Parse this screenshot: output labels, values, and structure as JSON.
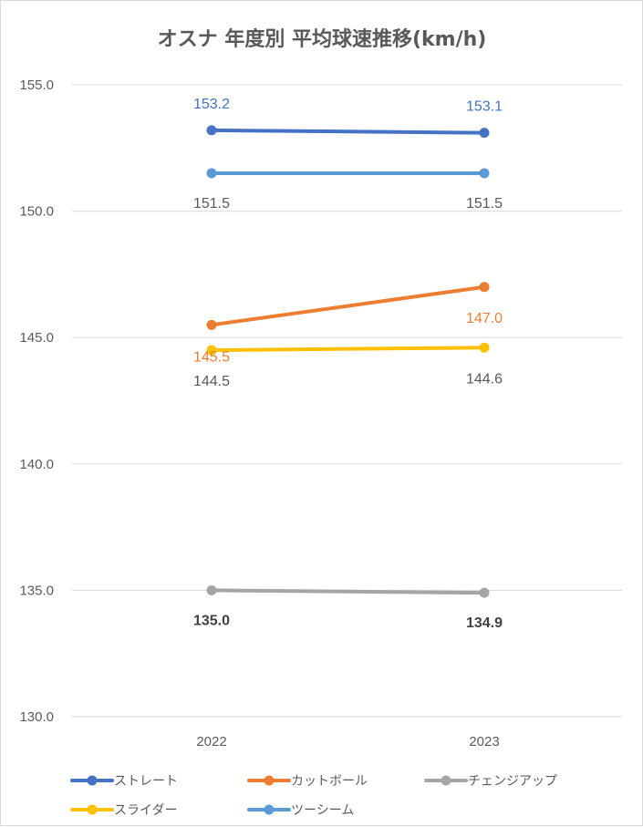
{
  "chart_data": {
    "type": "line",
    "title": "オスナ 年度別 平均球速推移(km/h)",
    "xlabel": "",
    "ylabel": "",
    "x": [
      "2022",
      "2023"
    ],
    "ylim": [
      130.0,
      155.0
    ],
    "yticks": [
      "130.0",
      "135.0",
      "140.0",
      "145.0",
      "150.0",
      "155.0"
    ],
    "grid": true,
    "legend_position": "bottom",
    "series": [
      {
        "name": "ストレート",
        "values": [
          153.2,
          153.1
        ],
        "labels": [
          "153.2",
          "153.1"
        ],
        "color": "#4472c4",
        "label_placement": "above",
        "label_color": "#4472c4"
      },
      {
        "name": "カットボール",
        "values": [
          145.5,
          147.0
        ],
        "labels": [
          "145.5",
          "147.0"
        ],
        "color": "#ed7d31",
        "label_placement": "below",
        "label_color": "#ed7d31"
      },
      {
        "name": "チェンジアップ",
        "values": [
          135.0,
          134.9
        ],
        "labels": [
          "135.0",
          "134.9"
        ],
        "color": "#a5a5a5",
        "label_placement": "below",
        "label_color": "#404040",
        "label_bold": true
      },
      {
        "name": "スライダー",
        "values": [
          144.5,
          144.6
        ],
        "labels": [
          "144.5",
          "144.6"
        ],
        "color": "#ffc000",
        "label_placement": "below",
        "label_color": "#595959"
      },
      {
        "name": "ツーシーム",
        "values": [
          151.5,
          151.5
        ],
        "labels": [
          "151.5",
          "151.5"
        ],
        "color": "#5b9bd5",
        "label_placement": "below",
        "label_color": "#595959"
      }
    ]
  }
}
